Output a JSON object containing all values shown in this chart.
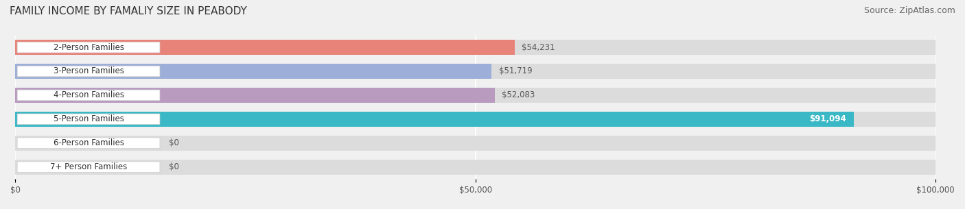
{
  "title": "FAMILY INCOME BY FAMALIY SIZE IN PEABODY",
  "source": "Source: ZipAtlas.com",
  "categories": [
    "2-Person Families",
    "3-Person Families",
    "4-Person Families",
    "5-Person Families",
    "6-Person Families",
    "7+ Person Families"
  ],
  "values": [
    54231,
    51719,
    52083,
    91094,
    0,
    0
  ],
  "bar_colors": [
    "#e8837a",
    "#9daed8",
    "#b89bbf",
    "#3ab8c5",
    "#b0b8e8",
    "#f0a0b8"
  ],
  "value_labels": [
    "$54,231",
    "$51,719",
    "$52,083",
    "$91,094",
    "$0",
    "$0"
  ],
  "xmax": 100000,
  "xticks": [
    0,
    50000,
    100000
  ],
  "xticklabels": [
    "$0",
    "$50,000",
    "$100,000"
  ],
  "background_color": "#f0f0f0",
  "title_fontsize": 11,
  "source_fontsize": 9,
  "label_fontsize": 8.5,
  "value_fontsize": 8.5
}
